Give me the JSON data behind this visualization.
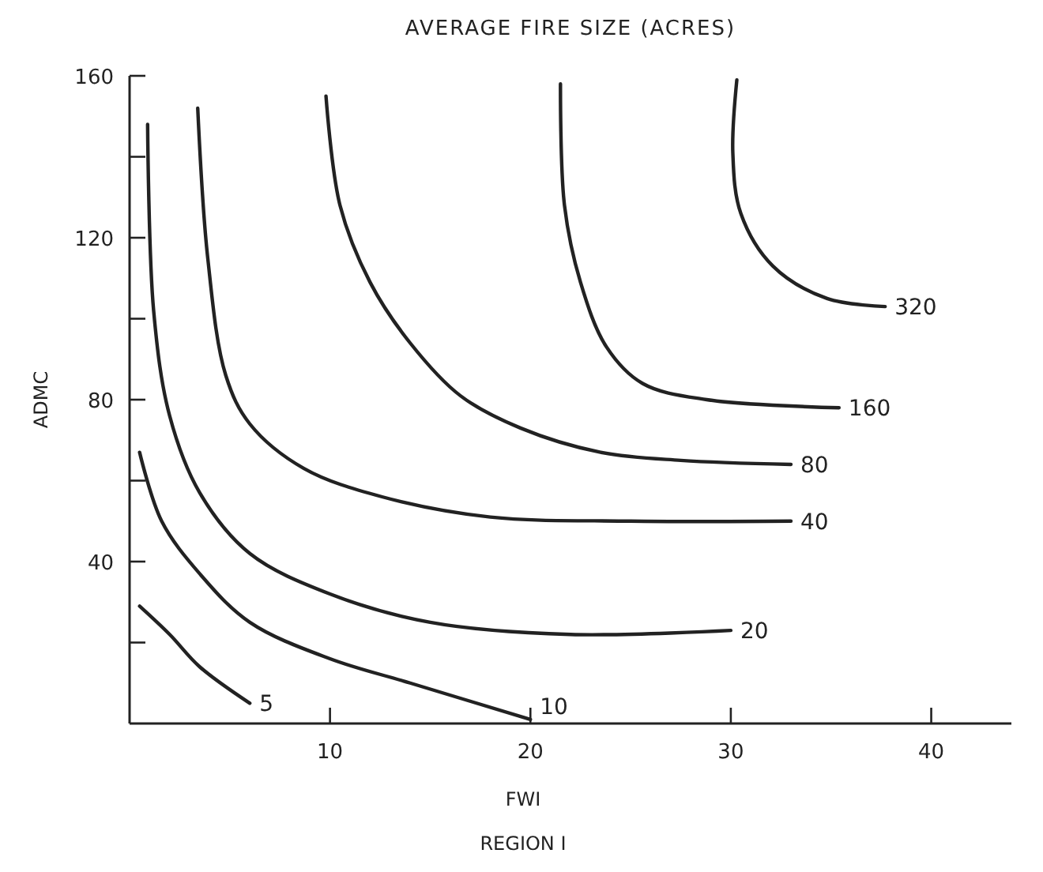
{
  "chart_data": {
    "type": "line",
    "title": "AVERAGE FIRE SIZE (ACRES)",
    "xlabel": "FWI",
    "ylabel": "ADMC",
    "annotations": [
      "REGION I"
    ],
    "xlim": [
      0,
      44
    ],
    "ylim": [
      0,
      160
    ],
    "xticks": [
      10,
      20,
      30,
      40
    ],
    "yticks": [
      {
        "value": 20,
        "label": null
      },
      40,
      {
        "value": 60,
        "label": null
      },
      80,
      {
        "value": 100,
        "label": null
      },
      120,
      {
        "value": 140,
        "label": null
      },
      160
    ],
    "grid": false,
    "legend": false,
    "marker": "none",
    "line_style": "solid",
    "series": [
      {
        "name": "5",
        "color": "#222222",
        "x": [
          0.5,
          2,
          3.5,
          6
        ],
        "values": [
          29,
          22,
          14,
          5
        ]
      },
      {
        "name": "10",
        "color": "#222222",
        "x": [
          0.5,
          1.6,
          3.5,
          6,
          10,
          14,
          20
        ],
        "values": [
          67,
          50,
          37,
          25,
          16,
          10,
          1
        ]
      },
      {
        "name": "20",
        "color": "#222222",
        "x": [
          0.9,
          1.2,
          2,
          3.5,
          6,
          10,
          15,
          22,
          30
        ],
        "values": [
          148,
          102,
          76,
          57,
          42,
          32,
          25,
          22,
          23
        ]
      },
      {
        "name": "40",
        "color": "#222222",
        "x": [
          3.4,
          3.9,
          4.8,
          6,
          8.7,
          12.6,
          18,
          25,
          33
        ],
        "values": [
          152,
          115,
          86,
          74,
          63,
          56,
          51,
          50,
          50
        ]
      },
      {
        "name": "80",
        "color": "#222222",
        "x": [
          9.8,
          10.5,
          12,
          14,
          16.5,
          19.5,
          23.5,
          27.5,
          33
        ],
        "values": [
          155,
          128,
          109,
          94,
          81,
          73,
          67,
          65,
          64
        ]
      },
      {
        "name": "160",
        "color": "#222222",
        "x": [
          21.5,
          21.7,
          22.5,
          23.8,
          25.6,
          28.8,
          35.4
        ],
        "values": [
          158,
          128,
          109,
          93,
          84,
          80,
          78
        ]
      },
      {
        "name": "320",
        "color": "#222222",
        "x": [
          30.3,
          30.1,
          30.5,
          32.1,
          34.8,
          37.7
        ],
        "values": [
          159,
          141,
          126,
          113,
          105,
          103
        ]
      }
    ]
  }
}
